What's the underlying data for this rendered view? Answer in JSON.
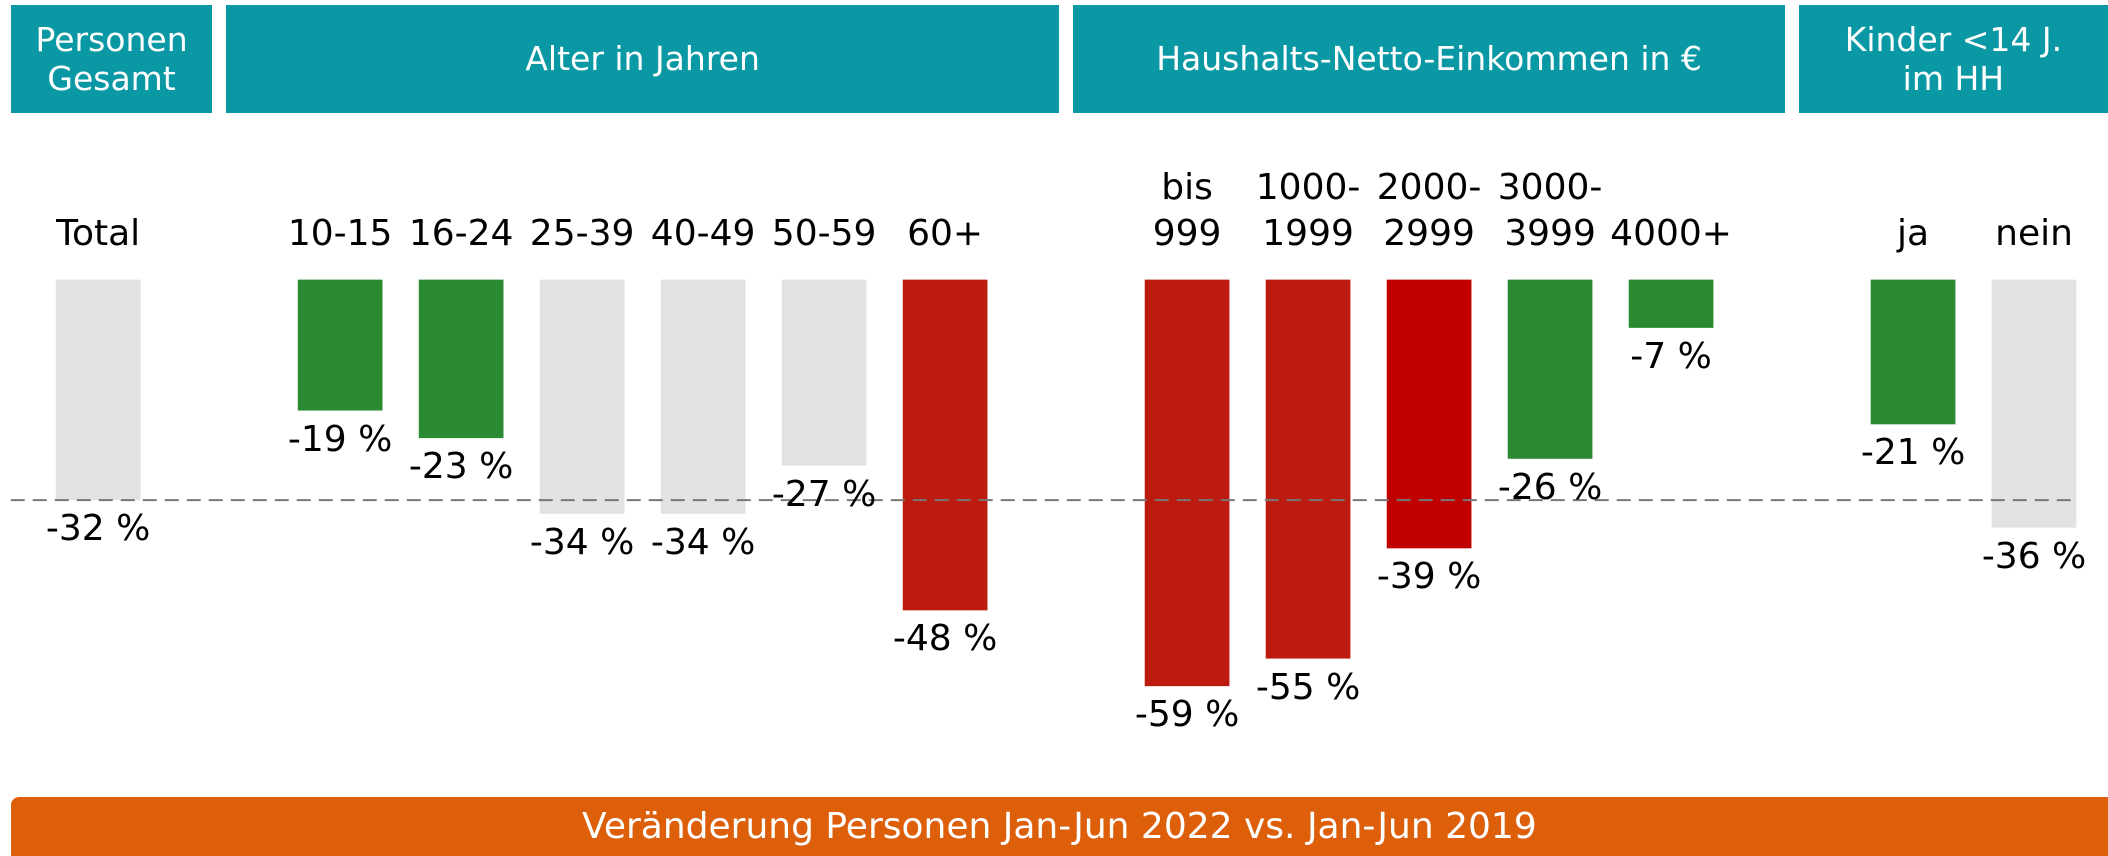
{
  "chart_data": {
    "type": "bar",
    "groups": [
      {
        "label": "Personen\nGesamt",
        "categories": [
          "Total"
        ],
        "values": [
          -32
        ],
        "value_labels": [
          "-32 %"
        ],
        "colors": [
          "#e1e2e4"
        ]
      },
      {
        "label": "Alter in Jahren",
        "categories": [
          "10-15",
          "16-24",
          "25-39",
          "40-49",
          "50-59",
          "60+"
        ],
        "values": [
          -19,
          -23,
          -34,
          -34,
          -27,
          -48
        ],
        "value_labels": [
          "-19 %",
          "-23 %",
          "-34 %",
          "-34 %",
          "-27 %",
          "-48 %"
        ],
        "colors": [
          "#2a8a32",
          "#2a8a32",
          "#e1e2e4",
          "#e1e2e4",
          "#e1e2e4",
          "#bd1a10"
        ]
      },
      {
        "label": "Haushalts-Netto-Einkommen in €",
        "categories": [
          "bis\n999",
          "1000-\n1999",
          "2000-\n2999",
          "3000-\n3999",
          "4000+"
        ],
        "values": [
          -59,
          -55,
          -39,
          -26,
          -7
        ],
        "value_labels": [
          "-59 %",
          "-55 %",
          "-39 %",
          "-26 %",
          "-7 %"
        ],
        "colors": [
          "#bd1a10",
          "#bd1a10",
          "#c00000",
          "#2a8a32",
          "#2a8a32"
        ]
      },
      {
        "label": "Kinder <14 J.\nim HH",
        "categories": [
          "ja",
          "nein"
        ],
        "values": [
          -21,
          -36
        ],
        "value_labels": [
          "-21 %",
          "-36 %"
        ],
        "colors": [
          "#2a8a32",
          "#e1e2e4"
        ]
      }
    ],
    "ylim": [
      -60,
      0
    ],
    "reference_line": -32,
    "footer": "Veränderung Personen Jan-Jun 2022 vs. Jan-Jun 2019"
  }
}
